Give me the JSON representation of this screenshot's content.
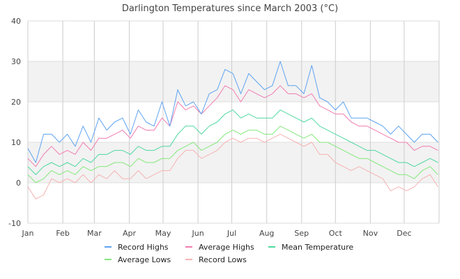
{
  "chart_data": {
    "type": "line",
    "title": "Darlington Temperatures since March 2003 (°C)",
    "xlabel": "",
    "ylabel": "",
    "ylim": [
      -10,
      40
    ],
    "yticks": [
      "40",
      "30",
      "20",
      "10",
      "0",
      "-10"
    ],
    "yticks_values": [
      40,
      30,
      20,
      10,
      0,
      -10
    ],
    "xticks": [
      "Jan",
      "Feb",
      "Mar",
      "Apr",
      "May",
      "Jun",
      "Jul",
      "Aug",
      "Sep",
      "Oct",
      "Nov",
      "Dec"
    ],
    "grid": true,
    "legend_position": "bottom",
    "x": [
      "01-01",
      "01-08",
      "01-15",
      "01-22",
      "01-29",
      "02-05",
      "02-12",
      "02-19",
      "02-26",
      "03-05",
      "03-12",
      "03-19",
      "03-26",
      "04-02",
      "04-09",
      "04-16",
      "04-23",
      "04-30",
      "05-07",
      "05-14",
      "05-21",
      "05-28",
      "06-04",
      "06-11",
      "06-18",
      "06-25",
      "07-02",
      "07-09",
      "07-16",
      "07-23",
      "07-30",
      "08-06",
      "08-13",
      "08-20",
      "08-27",
      "09-03",
      "09-10",
      "09-17",
      "09-24",
      "10-01",
      "10-08",
      "10-15",
      "10-22",
      "10-29",
      "11-05",
      "11-12",
      "11-19",
      "11-26",
      "12-03",
      "12-10",
      "12-17",
      "12-24",
      "12-31"
    ],
    "series": [
      {
        "name": "Record Highs",
        "color": "#5ea3f2",
        "values": [
          8.5,
          5,
          12,
          12,
          10,
          12,
          9,
          14,
          10,
          16,
          13,
          15,
          16,
          12,
          18,
          15,
          14,
          20,
          14,
          23,
          19,
          20,
          17,
          22,
          23,
          28,
          27,
          22,
          27,
          25,
          23,
          24,
          30,
          24,
          24,
          22,
          29,
          21,
          20,
          18,
          20,
          16,
          16,
          16,
          15,
          14,
          12,
          14,
          12,
          10,
          12,
          12,
          10
        ]
      },
      {
        "name": "Average Highs",
        "color": "#f17cb0",
        "values": [
          6,
          4,
          7,
          9,
          7,
          8,
          7,
          10,
          8,
          11,
          11,
          12,
          13,
          11,
          14,
          13,
          13,
          16,
          14,
          20,
          18,
          19,
          17,
          19,
          21,
          24,
          23,
          20,
          23,
          22,
          21,
          22,
          24,
          22,
          22,
          21,
          22,
          19,
          18,
          17,
          17,
          15,
          14,
          14,
          13,
          12,
          11,
          10,
          10,
          8,
          9,
          9,
          8
        ]
      },
      {
        "name": "Mean Temperature",
        "color": "#4fd8a0",
        "values": [
          4,
          2,
          4,
          5,
          4,
          5,
          4,
          6,
          5,
          7,
          7,
          8,
          8,
          7,
          9,
          8,
          8,
          9,
          9,
          12,
          14,
          14,
          12,
          14,
          15,
          17,
          18,
          16,
          17,
          16,
          16,
          16,
          18,
          17,
          16,
          15,
          16,
          14,
          13,
          12,
          11,
          10,
          9,
          8,
          8,
          7,
          6,
          5,
          5,
          4,
          5,
          6,
          5
        ]
      },
      {
        "name": "Average Lows",
        "color": "#84e87c",
        "values": [
          2,
          0,
          1,
          3,
          2,
          3,
          2,
          4,
          3,
          4,
          4,
          5,
          5,
          4,
          6,
          5,
          5,
          6,
          6,
          8,
          9,
          10,
          8,
          9,
          10,
          12,
          13,
          12,
          13,
          13,
          12,
          12,
          14,
          13,
          12,
          11,
          12,
          10,
          10,
          9,
          8,
          7,
          6,
          6,
          5,
          4,
          3,
          2,
          2,
          1,
          3,
          4,
          2
        ]
      },
      {
        "name": "Record Lows",
        "color": "#f7b2b2",
        "values": [
          -1,
          -4,
          -3,
          1,
          0,
          1,
          0,
          2,
          0,
          2,
          1,
          3,
          1,
          1,
          3,
          1,
          2,
          3,
          3,
          6,
          8,
          8,
          6,
          7,
          8,
          10,
          11,
          10,
          11,
          11,
          10,
          11,
          12,
          11,
          10,
          9,
          10,
          7,
          7,
          5,
          4,
          3,
          4,
          3,
          2,
          1,
          -2,
          -1,
          -2,
          -1,
          1,
          2,
          -1
        ]
      }
    ]
  }
}
